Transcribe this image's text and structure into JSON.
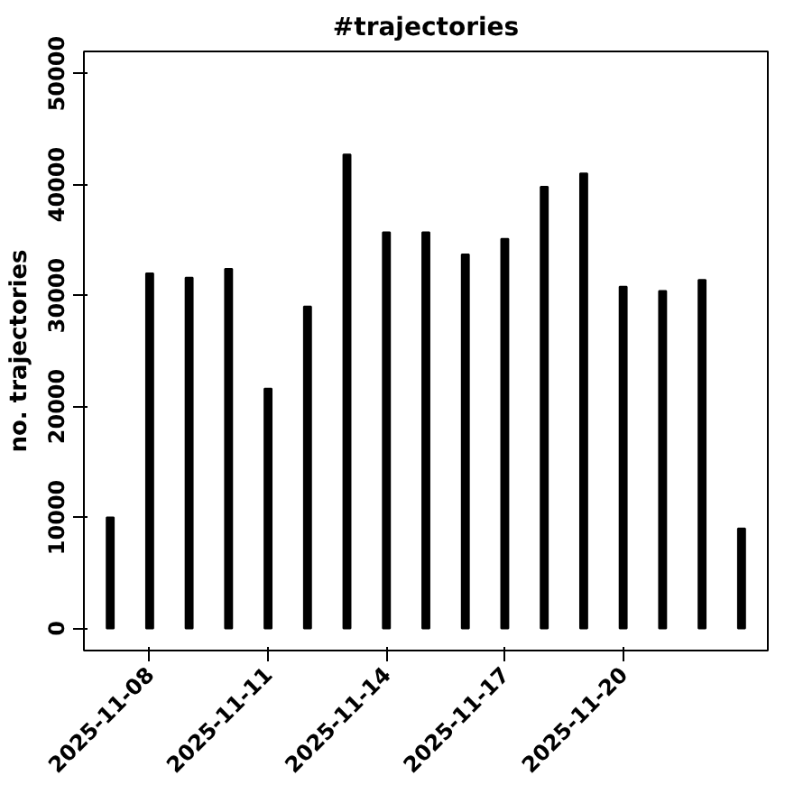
{
  "chart_data": {
    "type": "bar",
    "title": "#trajectories",
    "ylabel": "no. trajectories",
    "x": [
      "2025-11-07",
      "2025-11-08",
      "2025-11-09",
      "2025-11-10",
      "2025-11-11",
      "2025-11-12",
      "2025-11-13",
      "2025-11-14",
      "2025-11-15",
      "2025-11-16",
      "2025-11-17",
      "2025-11-18",
      "2025-11-19",
      "2025-11-20",
      "2025-11-21",
      "2025-11-22",
      "2025-11-23"
    ],
    "values": [
      10000,
      32000,
      31600,
      32400,
      21600,
      29000,
      42700,
      35700,
      35700,
      33700,
      35100,
      39800,
      41000,
      30800,
      30400,
      31400,
      9000
    ],
    "color": "#000000",
    "xlim": [
      "2025-11-06T08:00",
      "2025-11-23T16:00"
    ],
    "xticks": [
      "2025-11-08",
      "2025-11-11",
      "2025-11-14",
      "2025-11-17",
      "2025-11-20"
    ],
    "ylim": [
      -2000,
      52000
    ],
    "yticks": [
      0,
      10000,
      20000,
      30000,
      40000,
      50000
    ],
    "grid": false
  }
}
